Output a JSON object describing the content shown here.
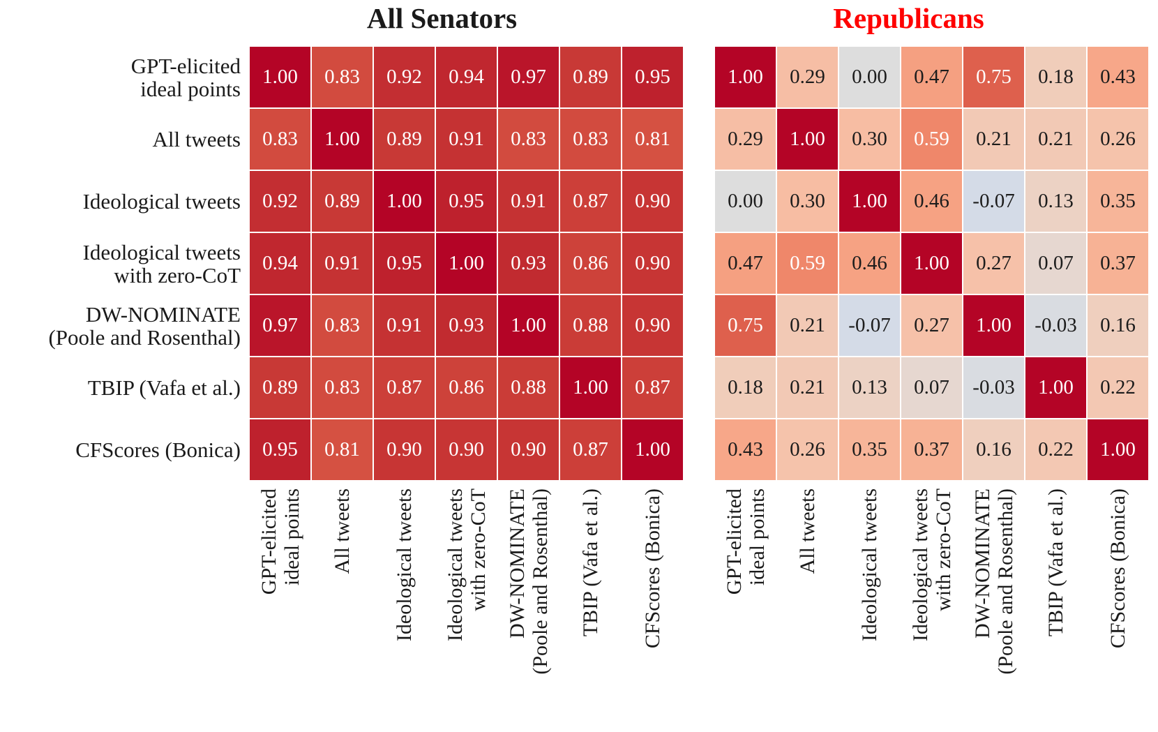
{
  "figure_background": "#ffffff",
  "style": {
    "colormap_low": "#3b4cc0",
    "colormap_mid": "#dddddd",
    "colormap_high": "#b40426",
    "cell_text_light": "#ffffff",
    "cell_text_dark": "#1c1c1c",
    "axis_label_color": "#1a1a1a"
  },
  "chart_data": [
    {
      "type": "heatmap",
      "title": "All Senators",
      "title_color": "#1a1a1a",
      "colormap": "coolwarm",
      "value_range": [
        -1,
        1
      ],
      "gridlines": "white",
      "legend": "none",
      "labels": [
        [
          "GPT-elicited",
          "ideal points"
        ],
        [
          "All tweets"
        ],
        [
          "Ideological tweets"
        ],
        [
          "Ideological tweets",
          "with zero-CoT"
        ],
        [
          "DW-NOMINATE",
          "(Poole and Rosenthal)"
        ],
        [
          "TBIP (Vafa et al.)"
        ],
        [
          "CFScores (Bonica)"
        ]
      ],
      "matrix": [
        [
          1.0,
          0.83,
          0.92,
          0.94,
          0.97,
          0.89,
          0.95
        ],
        [
          0.83,
          1.0,
          0.89,
          0.91,
          0.83,
          0.83,
          0.81
        ],
        [
          0.92,
          0.89,
          1.0,
          0.95,
          0.91,
          0.87,
          0.9
        ],
        [
          0.94,
          0.91,
          0.95,
          1.0,
          0.93,
          0.86,
          0.9
        ],
        [
          0.97,
          0.83,
          0.91,
          0.93,
          1.0,
          0.88,
          0.9
        ],
        [
          0.89,
          0.83,
          0.87,
          0.86,
          0.88,
          1.0,
          0.87
        ],
        [
          0.95,
          0.81,
          0.9,
          0.9,
          0.9,
          0.87,
          1.0
        ]
      ]
    },
    {
      "type": "heatmap",
      "title": "Republicans",
      "title_color": "#ff0000",
      "colormap": "coolwarm",
      "value_range": [
        -1,
        1
      ],
      "gridlines": "white",
      "legend": "none",
      "labels": [
        [
          "GPT-elicited",
          "ideal points"
        ],
        [
          "All tweets"
        ],
        [
          "Ideological tweets"
        ],
        [
          "Ideological tweets",
          "with zero-CoT"
        ],
        [
          "DW-NOMINATE",
          "(Poole and Rosenthal)"
        ],
        [
          "TBIP (Vafa et al.)"
        ],
        [
          "CFScores (Bonica)"
        ]
      ],
      "matrix": [
        [
          1.0,
          0.29,
          0.0,
          0.47,
          0.75,
          0.18,
          0.43
        ],
        [
          0.29,
          1.0,
          0.3,
          0.59,
          0.21,
          0.21,
          0.26
        ],
        [
          0.0,
          0.3,
          1.0,
          0.46,
          -0.07,
          0.13,
          0.35
        ],
        [
          0.47,
          0.59,
          0.46,
          1.0,
          0.27,
          0.07,
          0.37
        ],
        [
          0.75,
          0.21,
          -0.07,
          0.27,
          1.0,
          -0.03,
          0.16
        ],
        [
          0.18,
          0.21,
          0.13,
          0.07,
          -0.03,
          1.0,
          0.22
        ],
        [
          0.43,
          0.26,
          0.35,
          0.37,
          0.16,
          0.22,
          1.0
        ]
      ]
    }
  ]
}
